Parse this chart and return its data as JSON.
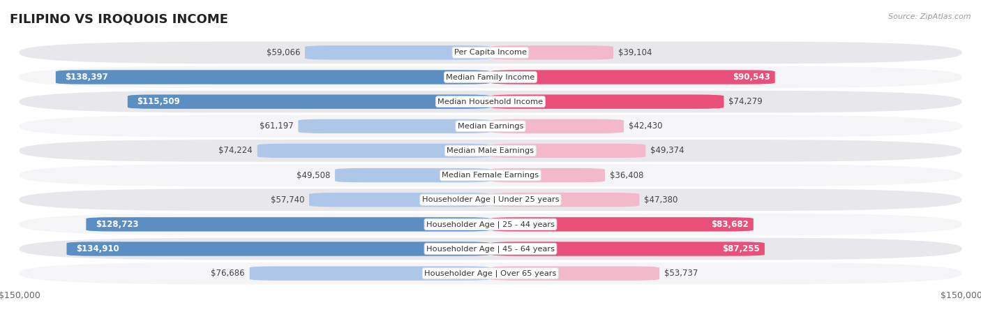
{
  "title": "FILIPINO VS IROQUOIS INCOME",
  "source": "Source: ZipAtlas.com",
  "categories": [
    "Per Capita Income",
    "Median Family Income",
    "Median Household Income",
    "Median Earnings",
    "Median Male Earnings",
    "Median Female Earnings",
    "Householder Age | Under 25 years",
    "Householder Age | 25 - 44 years",
    "Householder Age | 45 - 64 years",
    "Householder Age | Over 65 years"
  ],
  "filipino_values": [
    59066,
    138397,
    115509,
    61197,
    74224,
    49508,
    57740,
    128723,
    134910,
    76686
  ],
  "iroquois_values": [
    39104,
    90543,
    74279,
    42430,
    49374,
    36408,
    47380,
    83682,
    87255,
    53737
  ],
  "filipino_light": "#aec6e8",
  "filipino_dark": "#5b8fc4",
  "iroquois_light": "#f4b8cb",
  "iroquois_dark": "#e8507a",
  "max_value": 150000,
  "row_bg": "#e8e8ec",
  "row_bg_alt": "#f5f5f8",
  "bar_height": 0.58,
  "label_fontsize": 8.5,
  "title_fontsize": 13,
  "legend_fontsize": 9.5,
  "inside_threshold_fil": 0.75,
  "inside_threshold_iro": 0.52
}
